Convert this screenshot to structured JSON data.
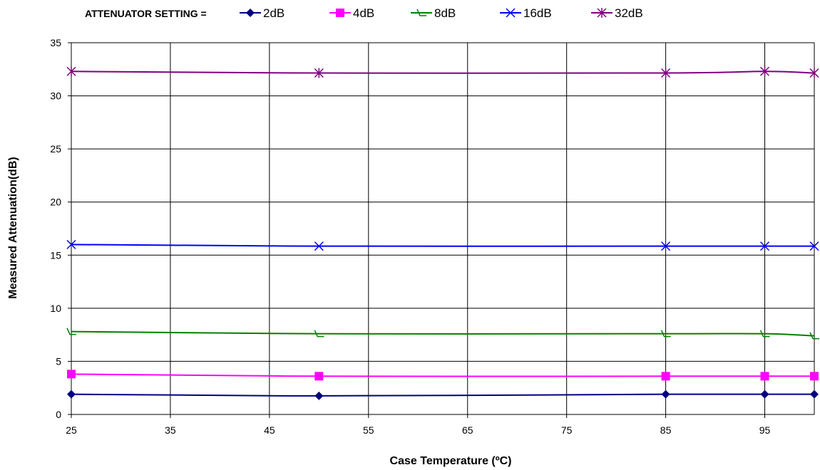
{
  "chart_data": {
    "type": "line",
    "xlabel": "Case Temperature (ºC)",
    "ylabel": "Measured Attenuation(dB)",
    "legend_prefix": "ATTENUATOR SETTING =",
    "xlim": [
      25,
      100
    ],
    "ylim": [
      0,
      35
    ],
    "xticks": [
      25,
      35,
      45,
      55,
      65,
      75,
      85,
      95
    ],
    "yticks": [
      0,
      5,
      10,
      15,
      20,
      25,
      30,
      35
    ],
    "grid": true,
    "legend_position": "top",
    "x": [
      25,
      50,
      85,
      95,
      100
    ],
    "series": [
      {
        "name": "2dB",
        "color": "#000080",
        "marker": "diamond",
        "values": [
          1.9,
          1.75,
          1.9,
          1.9,
          1.9
        ]
      },
      {
        "name": "4dB",
        "color": "#ff00ff",
        "marker": "square",
        "values": [
          3.8,
          3.6,
          3.6,
          3.6,
          3.6
        ]
      },
      {
        "name": "8dB",
        "color": "#008000",
        "marker": "triangle",
        "values": [
          7.8,
          7.6,
          7.6,
          7.6,
          7.4
        ]
      },
      {
        "name": "16dB",
        "color": "#0000ff",
        "marker": "x",
        "values": [
          16.0,
          15.85,
          15.85,
          15.85,
          15.85
        ]
      },
      {
        "name": "32dB",
        "color": "#800080",
        "marker": "star",
        "values": [
          32.3,
          32.15,
          32.15,
          32.3,
          32.15
        ]
      }
    ]
  }
}
